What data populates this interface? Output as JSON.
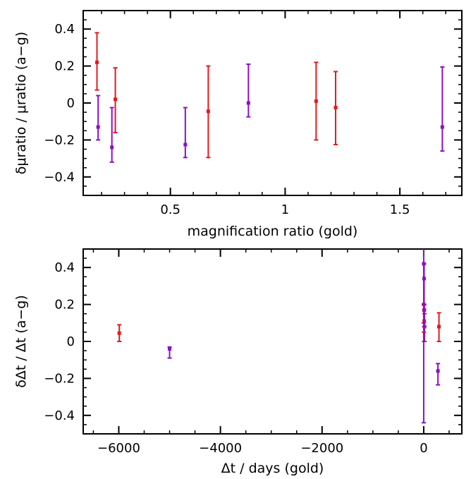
{
  "colors": {
    "red": "#e41a1c",
    "purple": "#8b10c8",
    "axis": "#000000"
  },
  "chart_data": [
    {
      "type": "scatter",
      "xlabel": "magnification ratio (gold)",
      "ylabel": "δμratio / μratio (a−g)",
      "xlim": [
        0.12,
        1.77
      ],
      "ylim": [
        -0.5,
        0.5
      ],
      "xticks": [
        0.5,
        1,
        1.5
      ],
      "xtick_labels": [
        "0.5",
        "1",
        "1.5"
      ],
      "yticks": [
        -0.4,
        -0.2,
        0,
        0.2,
        0.4
      ],
      "ytick_labels": [
        "−0.4",
        "−0.2",
        "0",
        "0.2",
        "0.4"
      ],
      "grid": false,
      "series": [
        {
          "color": "red",
          "points": [
            {
              "x": 0.18,
              "y": 0.22,
              "lo": 0.07,
              "hi": 0.38
            },
            {
              "x": 0.26,
              "y": 0.02,
              "lo": -0.16,
              "hi": 0.19
            },
            {
              "x": 0.665,
              "y": -0.045,
              "lo": -0.295,
              "hi": 0.2
            },
            {
              "x": 1.135,
              "y": 0.01,
              "lo": -0.2,
              "hi": 0.22
            },
            {
              "x": 1.22,
              "y": -0.025,
              "lo": -0.225,
              "hi": 0.17
            }
          ]
        },
        {
          "color": "purple",
          "points": [
            {
              "x": 0.185,
              "y": -0.13,
              "lo": -0.2,
              "hi": 0.04
            },
            {
              "x": 0.245,
              "y": -0.24,
              "lo": -0.32,
              "hi": -0.025
            },
            {
              "x": 0.565,
              "y": -0.225,
              "lo": -0.295,
              "hi": -0.025
            },
            {
              "x": 0.84,
              "y": 0.0,
              "lo": -0.075,
              "hi": 0.21
            },
            {
              "x": 1.685,
              "y": -0.13,
              "lo": -0.26,
              "hi": 0.195
            }
          ]
        }
      ]
    },
    {
      "type": "scatter",
      "xlabel": "Δt / days (gold)",
      "ylabel": "δΔt / Δt (a−g)",
      "xlim": [
        -6700,
        750
      ],
      "ylim": [
        -0.5,
        0.5
      ],
      "xticks": [
        -6000,
        -4000,
        -2000,
        0
      ],
      "xtick_labels": [
        "−6000",
        "−4000",
        "−2000",
        "0"
      ],
      "yticks": [
        -0.4,
        -0.2,
        0,
        0.2,
        0.4
      ],
      "ytick_labels": [
        "−0.4",
        "−0.2",
        "0",
        "0.2",
        "0.4"
      ],
      "grid": false,
      "series": [
        {
          "color": "red",
          "points": [
            {
              "x": -5990,
              "y": 0.045,
              "lo": 0.0,
              "hi": 0.09
            },
            {
              "x": 0,
              "y": 0.2,
              "lo": 0.1,
              "hi": 0.2
            },
            {
              "x": 5,
              "y": 0.17,
              "lo": 0.05,
              "hi": 0.2
            },
            {
              "x": 10,
              "y": 0.11,
              "lo": 0.0,
              "hi": 0.2
            },
            {
              "x": 15,
              "y": 0.08,
              "lo": 0.0,
              "hi": 0.15
            },
            {
              "x": 300,
              "y": 0.08,
              "lo": 0.0,
              "hi": 0.155
            }
          ]
        },
        {
          "color": "purple",
          "points": [
            {
              "x": -5000,
              "y": -0.04,
              "lo": -0.09,
              "hi": -0.03
            },
            {
              "x": 0,
              "y": 0.42,
              "lo": -0.44,
              "hi": 0.5
            },
            {
              "x": 8,
              "y": 0.34,
              "lo": 0.0,
              "hi": 0.42
            },
            {
              "x": 12,
              "y": 0.17,
              "lo": 0.08,
              "hi": 0.2
            },
            {
              "x": 280,
              "y": -0.16,
              "lo": -0.235,
              "hi": -0.12
            }
          ]
        }
      ]
    }
  ]
}
